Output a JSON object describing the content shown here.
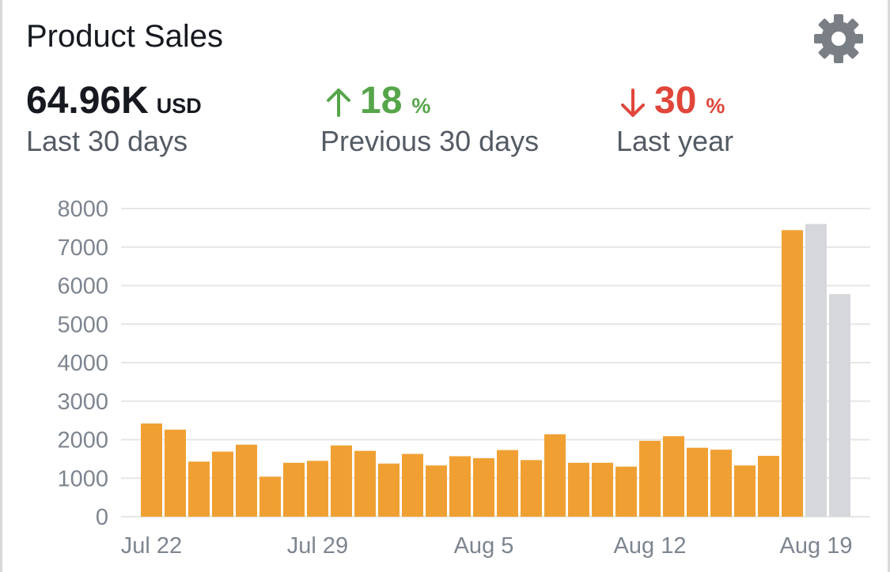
{
  "header": {
    "title": "Product Sales",
    "settings_icon": "gear-icon"
  },
  "metrics": [
    {
      "value": "64.96K",
      "unit": "USD",
      "label": "Last 30 days"
    },
    {
      "value": "18",
      "unit": "%",
      "label": "Previous 30 days",
      "direction": "up",
      "icon": "arrow-up-icon",
      "color": "#56a54a"
    },
    {
      "value": "30",
      "unit": "%",
      "label": "Last year",
      "direction": "down",
      "icon": "arrow-down-icon",
      "color": "#e0463a"
    }
  ],
  "colors": {
    "bar_actual": "#f0a033",
    "bar_projected": "#d5d7da",
    "grid": "#e6e6e6",
    "tick_text": "#7d8590"
  },
  "chart_data": {
    "type": "bar",
    "title": "",
    "xlabel": "",
    "ylabel": "",
    "ylim": [
      0,
      8000
    ],
    "yticks": [
      0,
      1000,
      2000,
      3000,
      4000,
      5000,
      6000,
      7000,
      8000
    ],
    "grid": true,
    "x_tick_labels": [
      "Jul 22",
      "Jul 29",
      "Aug 5",
      "Aug 12",
      "Aug 19"
    ],
    "categories": [
      "Jul 22",
      "Jul 23",
      "Jul 24",
      "Jul 25",
      "Jul 26",
      "Jul 27",
      "Jul 28",
      "Jul 29",
      "Jul 30",
      "Jul 31",
      "Aug 1",
      "Aug 2",
      "Aug 3",
      "Aug 4",
      "Aug 5",
      "Aug 6",
      "Aug 7",
      "Aug 8",
      "Aug 9",
      "Aug 10",
      "Aug 11",
      "Aug 12",
      "Aug 13",
      "Aug 14",
      "Aug 15",
      "Aug 16",
      "Aug 17",
      "Aug 18",
      "Aug 19",
      "Aug 20"
    ],
    "values": [
      2420,
      2260,
      1430,
      1690,
      1870,
      1040,
      1400,
      1450,
      1850,
      1710,
      1380,
      1630,
      1330,
      1570,
      1520,
      1730,
      1470,
      2140,
      1400,
      1400,
      1300,
      1970,
      2090,
      1790,
      1740,
      1330,
      1580,
      7440,
      7600,
      5780
    ],
    "bar_types": [
      "actual",
      "actual",
      "actual",
      "actual",
      "actual",
      "actual",
      "actual",
      "actual",
      "actual",
      "actual",
      "actual",
      "actual",
      "actual",
      "actual",
      "actual",
      "actual",
      "actual",
      "actual",
      "actual",
      "actual",
      "actual",
      "actual",
      "actual",
      "actual",
      "actual",
      "actual",
      "actual",
      "actual",
      "projected",
      "projected"
    ]
  }
}
